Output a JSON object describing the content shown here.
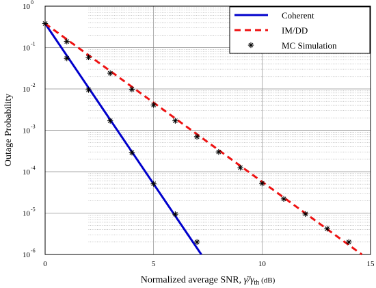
{
  "chart_data": {
    "type": "line",
    "xlabel": "Normalized average SNR, γ̄/γth (dB)",
    "ylabel": "Outage Probability",
    "xlim": [
      0,
      15
    ],
    "ylim": [
      1e-06,
      1
    ],
    "yscale": "log",
    "grid": true,
    "legend_placement": "top-right",
    "x_ticks": [
      "0",
      "5",
      "10",
      "15"
    ],
    "y_ticks": [
      {
        "base": "10",
        "exp": "0"
      },
      {
        "base": "10",
        "exp": "-1"
      },
      {
        "base": "10",
        "exp": "-2"
      },
      {
        "base": "10",
        "exp": "-3"
      },
      {
        "base": "10",
        "exp": "-4"
      },
      {
        "base": "10",
        "exp": "-5"
      },
      {
        "base": "10",
        "exp": "-6"
      }
    ],
    "series": [
      {
        "name": "Coherent",
        "style": "solid",
        "color": "#0000cc",
        "x": [
          0,
          7.2
        ],
        "y": [
          0.38,
          1e-06
        ]
      },
      {
        "name": "IM/DD",
        "style": "dashed",
        "color": "#ee1111",
        "x": [
          0,
          14.6
        ],
        "y": [
          0.38,
          1e-06
        ]
      },
      {
        "name": "MC Simulation",
        "style": "marker",
        "color": "#000000",
        "points": [
          {
            "x": 0,
            "y": 0.38
          },
          {
            "x": 1,
            "y": 0.055
          },
          {
            "x": 2,
            "y": 0.0095
          },
          {
            "x": 3,
            "y": 0.0017
          },
          {
            "x": 4,
            "y": 0.00029
          },
          {
            "x": 5,
            "y": 5.1e-05
          },
          {
            "x": 6,
            "y": 9.4e-06
          },
          {
            "x": 7,
            "y": 2e-06
          },
          {
            "x": 1,
            "y": 0.14
          },
          {
            "x": 2,
            "y": 0.058
          },
          {
            "x": 3,
            "y": 0.024
          },
          {
            "x": 4,
            "y": 0.0098
          },
          {
            "x": 5,
            "y": 0.0041
          },
          {
            "x": 6,
            "y": 0.0017
          },
          {
            "x": 7,
            "y": 0.0007
          },
          {
            "x": 8,
            "y": 0.0003
          },
          {
            "x": 9,
            "y": 0.000125
          },
          {
            "x": 10,
            "y": 5.2e-05
          },
          {
            "x": 11,
            "y": 2.2e-05
          },
          {
            "x": 12,
            "y": 9.5e-06
          },
          {
            "x": 13,
            "y": 4.2e-06
          },
          {
            "x": 14,
            "y": 2e-06
          }
        ]
      }
    ]
  }
}
